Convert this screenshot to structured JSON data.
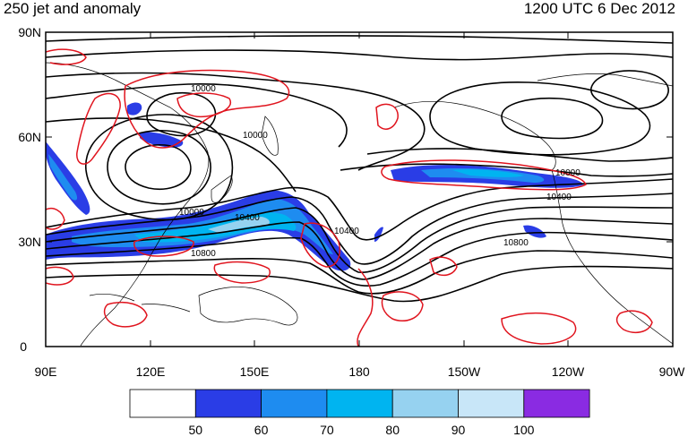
{
  "title_left": "250 jet and anomaly",
  "title_right": "1200 UTC 6 Dec 2012",
  "lat_ticks": [
    "90N",
    "60N",
    "30N",
    "0"
  ],
  "lon_ticks": [
    "90E",
    "120E",
    "150E",
    "180",
    "150W",
    "120W",
    "90W"
  ],
  "contour_labels": [
    "10000",
    "10000",
    "10000",
    "10400",
    "10400",
    "10000",
    "10400",
    "10800",
    "10800"
  ],
  "colorbar": {
    "tick_labels": [
      "50",
      "60",
      "70",
      "80",
      "90",
      "100"
    ],
    "bins": [
      {
        "range": "below 50",
        "color": "#ffffff"
      },
      {
        "range": "50-60",
        "color": "#2a3de6"
      },
      {
        "range": "60-70",
        "color": "#1e8cf0"
      },
      {
        "range": "70-80",
        "color": "#00b4f0"
      },
      {
        "range": "80-90",
        "color": "#96d2f0"
      },
      {
        "range": "90-100",
        "color": "#c8e6f8"
      },
      {
        "range": "above 100",
        "color": "#8a2be2"
      }
    ]
  },
  "colors": {
    "anomaly_contour": "#e0141e",
    "height_contour": "#000000",
    "coastline": "#000000"
  },
  "map": {
    "projection": "cylindrical-equidistant",
    "lon_range": [
      "90E",
      "90W"
    ],
    "lat_range": [
      "0",
      "90N"
    ]
  }
}
